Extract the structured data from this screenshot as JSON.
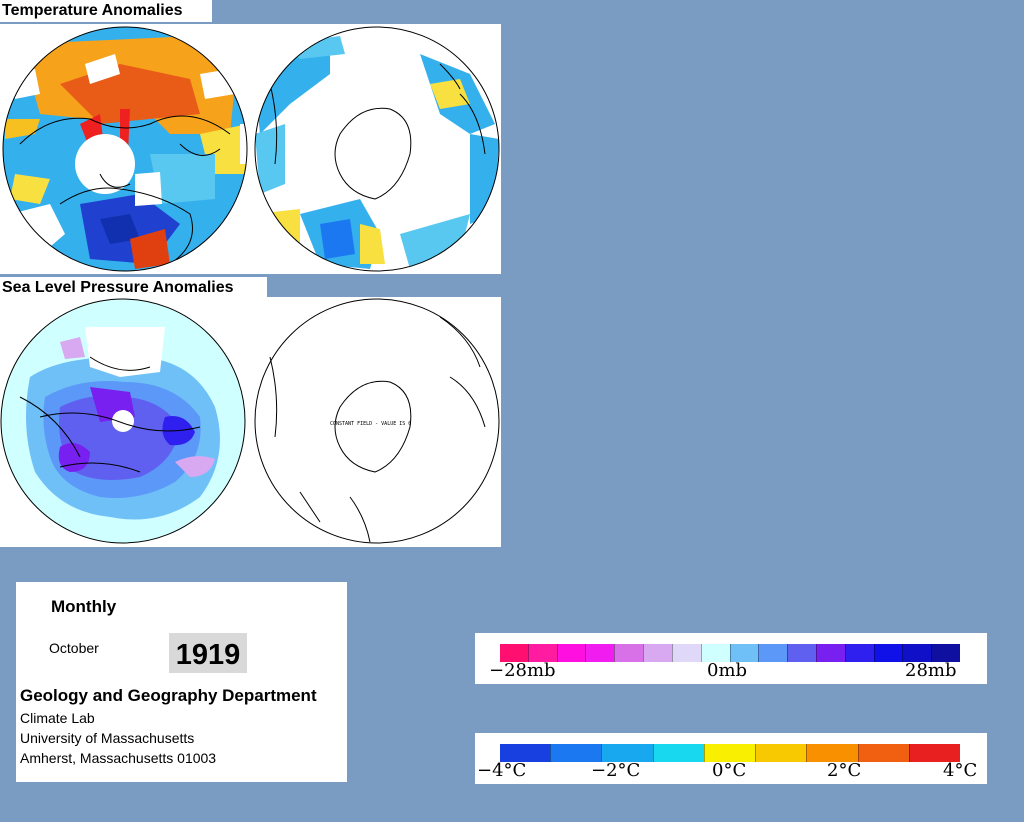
{
  "temperature": {
    "title": "Temperature Anomalies"
  },
  "slp": {
    "title": "Sea Level Pressure Anomalies",
    "constant_field_note": "CONSTANT FIELD - VALUE IS 0"
  },
  "info": {
    "period": "Monthly",
    "month": "October",
    "year": "1919",
    "department": "Geology and Geography Department",
    "lab": "Climate Lab",
    "university": "University of Massachusetts",
    "address": "Amherst, Massachusetts 01003"
  },
  "slp_legend": {
    "labels": [
      "−28mb",
      "0mb",
      "28mb"
    ],
    "colors": [
      "#ff1070",
      "#ff1ca0",
      "#ff10e0",
      "#f01cf0",
      "#d870e8",
      "#d8a8f0",
      "#e0d8f8",
      "#d0ffff",
      "#70c0f8",
      "#5c98f8",
      "#6060f0",
      "#7820f0",
      "#3020f0",
      "#1010e8",
      "#1010c8",
      "#1010a0"
    ]
  },
  "temp_legend": {
    "labels": [
      "−4°C",
      "−2°C",
      "0°C",
      "2°C",
      "4°C"
    ],
    "colors": [
      "#1840e0",
      "#1c78f0",
      "#18a8f0",
      "#18d8f0",
      "#f8f000",
      "#f8c800",
      "#f89000",
      "#f06010",
      "#e82020"
    ]
  },
  "colors": {
    "background": "#7b9cc2",
    "panel": "#ffffff"
  }
}
